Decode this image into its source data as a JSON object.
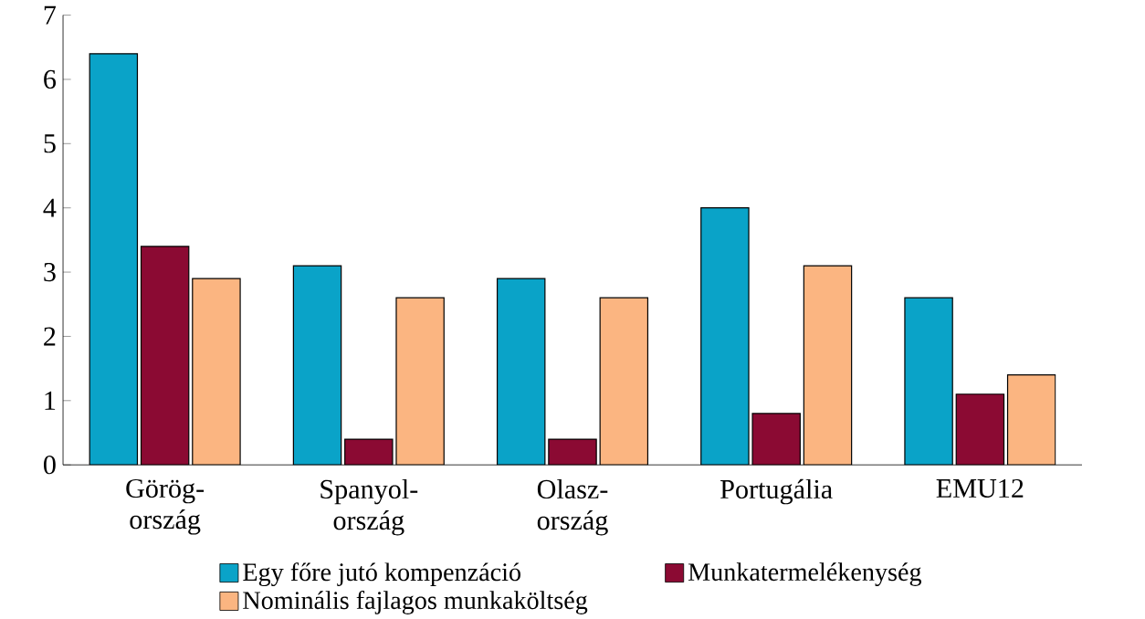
{
  "chart_data": {
    "type": "bar",
    "categories": [
      "Görög-ország",
      "Spanyol-ország",
      "Olasz-ország",
      "Portugália",
      "EMU12"
    ],
    "series": [
      {
        "name": "Egy főre jutó kompenzáció",
        "color": "#0aa3c8",
        "values": [
          6.4,
          3.1,
          2.9,
          4.0,
          2.6
        ]
      },
      {
        "name": "Munkatermelékenység",
        "color": "#8b0a33",
        "values": [
          3.4,
          0.4,
          0.4,
          0.8,
          1.1
        ]
      },
      {
        "name": "Nominális fajlagos munkaköltség",
        "color": "#fbb581",
        "values": [
          2.9,
          2.6,
          2.6,
          3.1,
          1.4
        ]
      }
    ],
    "ylim": [
      0,
      7
    ],
    "yticks": [
      0,
      1,
      2,
      3,
      4,
      5,
      6,
      7
    ],
    "legend": "bottom",
    "grid": false
  }
}
